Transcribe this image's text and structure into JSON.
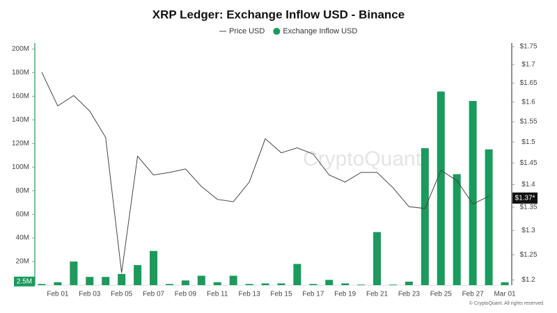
{
  "chart_data": {
    "type": "bar-line",
    "title": "XRP Ledger: Exchange Inflow USD - Binance",
    "categories": [
      null,
      "Feb 01",
      null,
      "Feb 03",
      null,
      "Feb 05",
      null,
      "Feb 07",
      null,
      "Feb 09",
      null,
      "Feb 11",
      null,
      "Feb 13",
      null,
      "Feb 15",
      null,
      "Feb 17",
      null,
      "Feb 19",
      null,
      "Feb 21",
      null,
      "Feb 23",
      null,
      "Feb 25",
      null,
      "Feb 27",
      null,
      "Mar 01"
    ],
    "series": [
      {
        "name": "Price USD",
        "type": "line",
        "axis": "y2",
        "color": "#444444",
        "values": [
          1.679,
          1.59,
          1.617,
          1.577,
          1.511,
          1.214,
          1.466,
          1.422,
          1.428,
          1.436,
          1.396,
          1.367,
          1.362,
          1.406,
          1.508,
          1.474,
          1.486,
          1.471,
          1.422,
          1.406,
          1.428,
          1.428,
          1.393,
          1.351,
          1.347,
          1.433,
          1.409,
          1.357,
          1.374,
          null
        ]
      },
      {
        "name": "Exchange Inflow USD",
        "type": "bar",
        "color": "#1a9a5c",
        "values": [
          1,
          2.5,
          20,
          7,
          7,
          9.5,
          17,
          29,
          1,
          4,
          8,
          2.5,
          8,
          1,
          1.5,
          1.5,
          18,
          1,
          4.5,
          1.5,
          0.5,
          45,
          0.5,
          3,
          116,
          164,
          94,
          156,
          115,
          2.5
        ]
      }
    ],
    "ylim": [
      0,
      205
    ],
    "yticks": [
      {
        "value": 20,
        "label": "20M"
      },
      {
        "value": 40,
        "label": "40M"
      },
      {
        "value": 60,
        "label": "60M"
      },
      {
        "value": 80,
        "label": "80M"
      },
      {
        "value": 100,
        "label": "100M"
      },
      {
        "value": 120,
        "label": "120M"
      },
      {
        "value": 140,
        "label": "140M"
      },
      {
        "value": 160,
        "label": "160M"
      },
      {
        "value": 180,
        "label": "180M"
      },
      {
        "value": 200,
        "label": "200M"
      }
    ],
    "y2lim": [
      1.19,
      1.76
    ],
    "y2log": true,
    "y2ticks": [
      {
        "value": 1.2,
        "label": "$1.2"
      },
      {
        "value": 1.25,
        "label": "$1.25"
      },
      {
        "value": 1.3,
        "label": "$1.3"
      },
      {
        "value": 1.35,
        "label": "$1.35"
      },
      {
        "value": 1.4,
        "label": "$1.4"
      },
      {
        "value": 1.45,
        "label": "$1.45"
      },
      {
        "value": 1.5,
        "label": "$1.5"
      },
      {
        "value": 1.55,
        "label": "$1.55"
      },
      {
        "value": 1.6,
        "label": "$1.6"
      },
      {
        "value": 1.65,
        "label": "$1.65"
      },
      {
        "value": 1.7,
        "label": "$1.7"
      },
      {
        "value": 1.75,
        "label": "$1.75"
      }
    ],
    "y_current": {
      "value": 2.5,
      "label": "2.5M"
    },
    "y2_current": {
      "value": 1.37,
      "label": "$1.37*"
    },
    "watermark": "CryptoQuant",
    "copyright": "© CryptoQuant. All rights reserved."
  }
}
